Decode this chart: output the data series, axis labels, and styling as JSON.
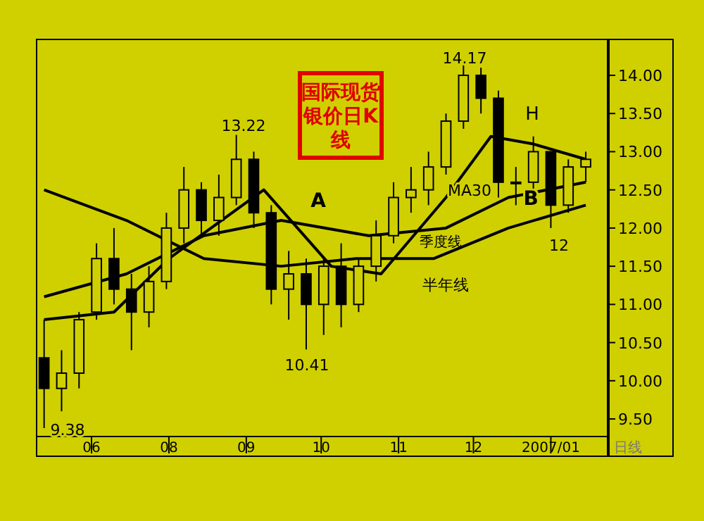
{
  "chart_data": {
    "type": "candlestick",
    "title": "国际现货银价日K线",
    "xlabel": "日线",
    "x": [
      "2006-06-12",
      "2006-06-19",
      "2006-06-26",
      "2006-07-03",
      "2006-07-10",
      "2006-07-17",
      "2006-07-24",
      "2006-07-31",
      "2006-08-07",
      "2006-08-14",
      "2006-08-21",
      "2006-08-28",
      "2006-09-04",
      "2006-09-11",
      "2006-09-18",
      "2006-09-25",
      "2006-10-02",
      "2006-10-09",
      "2006-10-16",
      "2006-10-23",
      "2006-10-30",
      "2006-11-06",
      "2006-11-13",
      "2006-11-20",
      "2006-11-27",
      "2006-12-04",
      "2006-12-11",
      "2006-12-18",
      "2006-12-25",
      "2007-01-01",
      "2007-01-08",
      "2007-01-15"
    ],
    "ohlc": [
      [
        10.3,
        10.8,
        9.38,
        9.9
      ],
      [
        9.9,
        10.4,
        9.6,
        10.1
      ],
      [
        10.1,
        10.9,
        9.9,
        10.8
      ],
      [
        10.9,
        11.8,
        10.8,
        11.6
      ],
      [
        11.6,
        12.0,
        11.0,
        11.2
      ],
      [
        11.2,
        11.4,
        10.4,
        10.9
      ],
      [
        10.9,
        11.5,
        10.7,
        11.3
      ],
      [
        11.3,
        12.2,
        11.2,
        12.0
      ],
      [
        12.0,
        12.8,
        11.8,
        12.5
      ],
      [
        12.5,
        12.6,
        11.9,
        12.1
      ],
      [
        12.1,
        12.7,
        11.9,
        12.4
      ],
      [
        12.4,
        13.22,
        12.3,
        12.9
      ],
      [
        12.9,
        13.0,
        12.0,
        12.2
      ],
      [
        12.2,
        12.3,
        11.0,
        11.2
      ],
      [
        11.2,
        11.7,
        10.8,
        11.4
      ],
      [
        11.4,
        11.6,
        10.41,
        11.0
      ],
      [
        11.0,
        11.6,
        10.6,
        11.5
      ],
      [
        11.5,
        11.8,
        10.7,
        11.0
      ],
      [
        11.0,
        11.6,
        10.9,
        11.5
      ],
      [
        11.5,
        12.1,
        11.3,
        11.9
      ],
      [
        11.9,
        12.6,
        11.8,
        12.4
      ],
      [
        12.4,
        12.8,
        12.2,
        12.5
      ],
      [
        12.5,
        13.0,
        12.3,
        12.8
      ],
      [
        12.8,
        13.5,
        12.7,
        13.4
      ],
      [
        13.4,
        14.17,
        13.3,
        14.0
      ],
      [
        14.0,
        14.1,
        13.5,
        13.7
      ],
      [
        13.7,
        13.8,
        12.4,
        12.6
      ],
      [
        12.6,
        12.8,
        12.3,
        12.6
      ],
      [
        12.6,
        13.2,
        12.5,
        13.0
      ],
      [
        13.0,
        13.0,
        12.0,
        12.3
      ],
      [
        12.3,
        12.9,
        12.2,
        12.8
      ],
      [
        12.8,
        13.0,
        12.6,
        12.9
      ]
    ],
    "color": "#000000",
    "series": [
      {
        "type": "line",
        "name": "MA30",
        "color": "#000000",
        "x": [
          "2006-06-12",
          "2006-07-10",
          "2006-08-01",
          "2006-09-08",
          "2006-10-05",
          "2006-10-25",
          "2006-11-20",
          "2006-12-08",
          "2006-12-25",
          "2007-01-15"
        ],
        "values": [
          10.8,
          10.9,
          11.6,
          12.5,
          11.5,
          11.4,
          12.4,
          13.2,
          13.1,
          12.9
        ]
      },
      {
        "type": "line",
        "name": "季度线",
        "color": "#000000",
        "x": [
          "2006-06-12",
          "2006-07-15",
          "2006-08-15",
          "2006-09-15",
          "2006-10-20",
          "2006-11-20",
          "2006-12-15",
          "2007-01-15"
        ],
        "values": [
          11.1,
          11.4,
          11.9,
          12.1,
          11.9,
          12.0,
          12.4,
          12.6
        ]
      },
      {
        "type": "line",
        "name": "半年线",
        "color": "#000000",
        "x": [
          "2006-06-12",
          "2006-07-15",
          "2006-08-15",
          "2006-09-15",
          "2006-10-15",
          "2006-11-15",
          "2006-12-15",
          "2007-01-15"
        ],
        "values": [
          12.5,
          12.1,
          11.6,
          11.5,
          11.6,
          11.6,
          12.0,
          12.3
        ]
      }
    ],
    "xlim": [
      "2006-06-09",
      "2007-01-24"
    ],
    "xticks": [
      {
        "value": "2006-07-01",
        "label": "06"
      },
      {
        "value": "2006-08-01",
        "label": "08"
      },
      {
        "value": "2006-09-01",
        "label": "09"
      },
      {
        "value": "2006-10-01",
        "label": "10"
      },
      {
        "value": "2006-11-01",
        "label": "11"
      },
      {
        "value": "2006-12-01",
        "label": "12"
      },
      {
        "value": "2007-01-01",
        "label": "2007/01"
      }
    ],
    "ylim": [
      9.27,
      14.47
    ],
    "yticks": [
      {
        "value": 9.5,
        "label": "9.50"
      },
      {
        "value": 10,
        "label": "10.00"
      },
      {
        "value": 10.5,
        "label": "10.50"
      },
      {
        "value": 11,
        "label": "11.00"
      },
      {
        "value": 11.5,
        "label": "11.50"
      },
      {
        "value": 12,
        "label": "12.00"
      },
      {
        "value": 12.5,
        "label": "12.50"
      },
      {
        "value": 13,
        "label": "13.00"
      },
      {
        "value": 13.5,
        "label": "13.50"
      },
      {
        "value": 14,
        "label": "14.00"
      }
    ],
    "grid": false,
    "legend": false,
    "annotations": [
      "9.38",
      "13.22",
      "10.41",
      "14.17",
      "12",
      "A",
      {
        "text": "B",
        "x": "2006-12-24",
        "y": 12.4
      },
      "H"
    ]
  }
}
